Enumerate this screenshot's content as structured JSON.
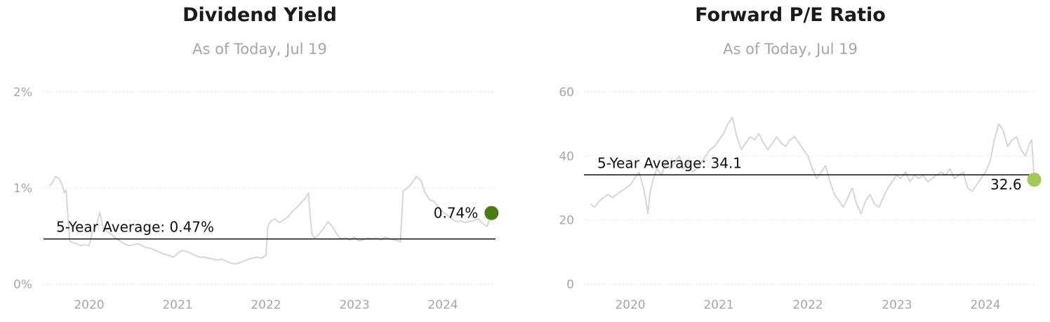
{
  "chart_data": [
    {
      "id": "div-yield",
      "type": "line",
      "title": "Dividend Yield",
      "subtitle": "As of Today, Jul 19",
      "xlabel": "",
      "ylabel": "",
      "x_ticks": [
        "2020",
        "2021",
        "2022",
        "2023",
        "2024"
      ],
      "y_ticks": [
        "0%",
        "1%",
        "2%"
      ],
      "y_tick_values": [
        0,
        1,
        2
      ],
      "ylim": [
        0,
        2
      ],
      "xlim": [
        2019.5,
        2024.56
      ],
      "grid": true,
      "average": {
        "label": "5-Year Average: 0.47%",
        "value": 0.47
      },
      "current": {
        "label": "0.74%",
        "value": 0.74,
        "x": 2024.55,
        "color": "#4b7a17"
      },
      "line_color": "#d6d6d6",
      "series": [
        {
          "x": [
            2019.55,
            2019.58,
            2019.62,
            2019.66,
            2019.7,
            2019.72,
            2019.74,
            2019.76,
            2019.78,
            2019.82,
            2019.86,
            2019.9,
            2019.95,
            2020.0,
            2020.04,
            2020.08,
            2020.12,
            2020.16,
            2020.2,
            2020.25,
            2020.3,
            2020.35,
            2020.4,
            2020.45,
            2020.5,
            2020.55,
            2020.6,
            2020.65,
            2020.7,
            2020.75,
            2020.8,
            2020.85,
            2020.9,
            2020.95,
            2021.0,
            2021.05,
            2021.1,
            2021.15,
            2021.2,
            2021.25,
            2021.3,
            2021.35,
            2021.4,
            2021.45,
            2021.5,
            2021.55,
            2021.6,
            2021.65,
            2021.7,
            2021.75,
            2021.8,
            2021.85,
            2021.9,
            2021.95,
            2022.0,
            2022.02,
            2022.03,
            2022.05,
            2022.1,
            2022.15,
            2022.2,
            2022.25,
            2022.3,
            2022.35,
            2022.4,
            2022.45,
            2022.48,
            2022.5,
            2022.52,
            2022.55,
            2022.6,
            2022.65,
            2022.7,
            2022.75,
            2022.8,
            2022.85,
            2022.9,
            2022.95,
            2023.0,
            2023.05,
            2023.1,
            2023.15,
            2023.2,
            2023.25,
            2023.3,
            2023.35,
            2023.4,
            2023.45,
            2023.5,
            2023.52,
            2023.55,
            2023.6,
            2023.65,
            2023.7,
            2023.75,
            2023.8,
            2023.85,
            2023.9,
            2023.95,
            2024.0,
            2024.05,
            2024.1,
            2024.15,
            2024.2,
            2024.25,
            2024.3,
            2024.35,
            2024.4,
            2024.45,
            2024.5,
            2024.55
          ],
          "values": [
            1.02,
            1.05,
            1.12,
            1.1,
            1.02,
            0.95,
            0.98,
            0.7,
            0.45,
            0.43,
            0.42,
            0.4,
            0.41,
            0.4,
            0.55,
            0.6,
            0.75,
            0.58,
            0.55,
            0.52,
            0.48,
            0.45,
            0.42,
            0.4,
            0.41,
            0.42,
            0.4,
            0.38,
            0.37,
            0.35,
            0.33,
            0.31,
            0.3,
            0.28,
            0.32,
            0.35,
            0.34,
            0.32,
            0.3,
            0.28,
            0.28,
            0.27,
            0.26,
            0.25,
            0.26,
            0.24,
            0.22,
            0.21,
            0.22,
            0.24,
            0.26,
            0.27,
            0.28,
            0.27,
            0.3,
            0.6,
            0.62,
            0.65,
            0.68,
            0.64,
            0.67,
            0.7,
            0.76,
            0.8,
            0.85,
            0.9,
            0.95,
            0.7,
            0.52,
            0.48,
            0.52,
            0.58,
            0.65,
            0.6,
            0.52,
            0.47,
            0.48,
            0.46,
            0.49,
            0.45,
            0.46,
            0.48,
            0.47,
            0.48,
            0.46,
            0.49,
            0.47,
            0.46,
            0.45,
            0.44,
            0.97,
            1.0,
            1.05,
            1.12,
            1.08,
            0.95,
            0.88,
            0.86,
            0.8,
            0.75,
            0.72,
            0.68,
            0.65,
            0.66,
            0.64,
            0.65,
            0.66,
            0.68,
            0.63,
            0.6,
            0.74
          ]
        }
      ]
    },
    {
      "id": "fwd-pe",
      "type": "line",
      "title": "Forward P/E Ratio",
      "subtitle": "As of Today, Jul 19",
      "xlabel": "",
      "ylabel": "",
      "x_ticks": [
        "2020",
        "2021",
        "2022",
        "2023",
        "2024"
      ],
      "y_ticks": [
        "0",
        "20",
        "40",
        "60"
      ],
      "y_tick_values": [
        0,
        20,
        40,
        60
      ],
      "ylim": [
        0,
        60
      ],
      "xlim": [
        2019.5,
        2024.56
      ],
      "grid": true,
      "average": {
        "label": "5-Year Average: 34.1",
        "value": 34.1
      },
      "current": {
        "label": "32.6",
        "value": 32.6,
        "x": 2024.55,
        "color": "#a6c85b"
      },
      "line_color": "#d6d6d6",
      "series": [
        {
          "x": [
            2019.55,
            2019.6,
            2019.65,
            2019.7,
            2019.75,
            2019.8,
            2019.85,
            2019.9,
            2019.95,
            2020.0,
            2020.05,
            2020.1,
            2020.15,
            2020.2,
            2020.22,
            2020.25,
            2020.3,
            2020.35,
            2020.4,
            2020.45,
            2020.5,
            2020.55,
            2020.6,
            2020.65,
            2020.7,
            2020.75,
            2020.8,
            2020.85,
            2020.9,
            2020.95,
            2021.0,
            2021.05,
            2021.1,
            2021.15,
            2021.2,
            2021.25,
            2021.3,
            2021.35,
            2021.4,
            2021.45,
            2021.5,
            2021.55,
            2021.6,
            2021.65,
            2021.7,
            2021.75,
            2021.8,
            2021.85,
            2021.9,
            2021.95,
            2022.0,
            2022.05,
            2022.1,
            2022.15,
            2022.2,
            2022.25,
            2022.3,
            2022.35,
            2022.4,
            2022.45,
            2022.5,
            2022.55,
            2022.6,
            2022.65,
            2022.7,
            2022.75,
            2022.8,
            2022.85,
            2022.9,
            2022.95,
            2023.0,
            2023.05,
            2023.1,
            2023.15,
            2023.2,
            2023.25,
            2023.3,
            2023.35,
            2023.4,
            2023.45,
            2023.5,
            2023.55,
            2023.6,
            2023.65,
            2023.7,
            2023.75,
            2023.8,
            2023.85,
            2023.9,
            2023.95,
            2024.0,
            2024.05,
            2024.1,
            2024.15,
            2024.2,
            2024.25,
            2024.3,
            2024.35,
            2024.4,
            2024.45,
            2024.5,
            2024.52,
            2024.55
          ],
          "values": [
            25,
            24,
            26,
            27,
            28,
            27,
            28,
            29,
            30,
            31,
            33,
            35,
            30,
            22,
            28,
            32,
            36,
            34,
            38,
            36,
            38,
            40,
            36,
            38,
            35,
            36,
            38,
            40,
            42,
            43,
            45,
            47,
            50,
            52,
            46,
            42,
            44,
            46,
            45,
            47,
            44,
            42,
            44,
            46,
            44,
            43,
            45,
            46,
            44,
            42,
            40,
            36,
            33,
            35,
            37,
            32,
            28,
            26,
            24,
            27,
            30,
            25,
            22,
            26,
            28,
            25,
            24,
            27,
            30,
            32,
            34,
            33,
            35,
            32,
            34,
            33,
            34,
            32,
            33,
            34,
            35,
            34,
            36,
            33,
            34,
            35,
            30,
            29,
            31,
            33,
            35,
            38,
            45,
            50,
            48,
            43,
            45,
            46,
            42,
            40,
            44,
            45,
            32.6
          ]
        }
      ]
    }
  ]
}
